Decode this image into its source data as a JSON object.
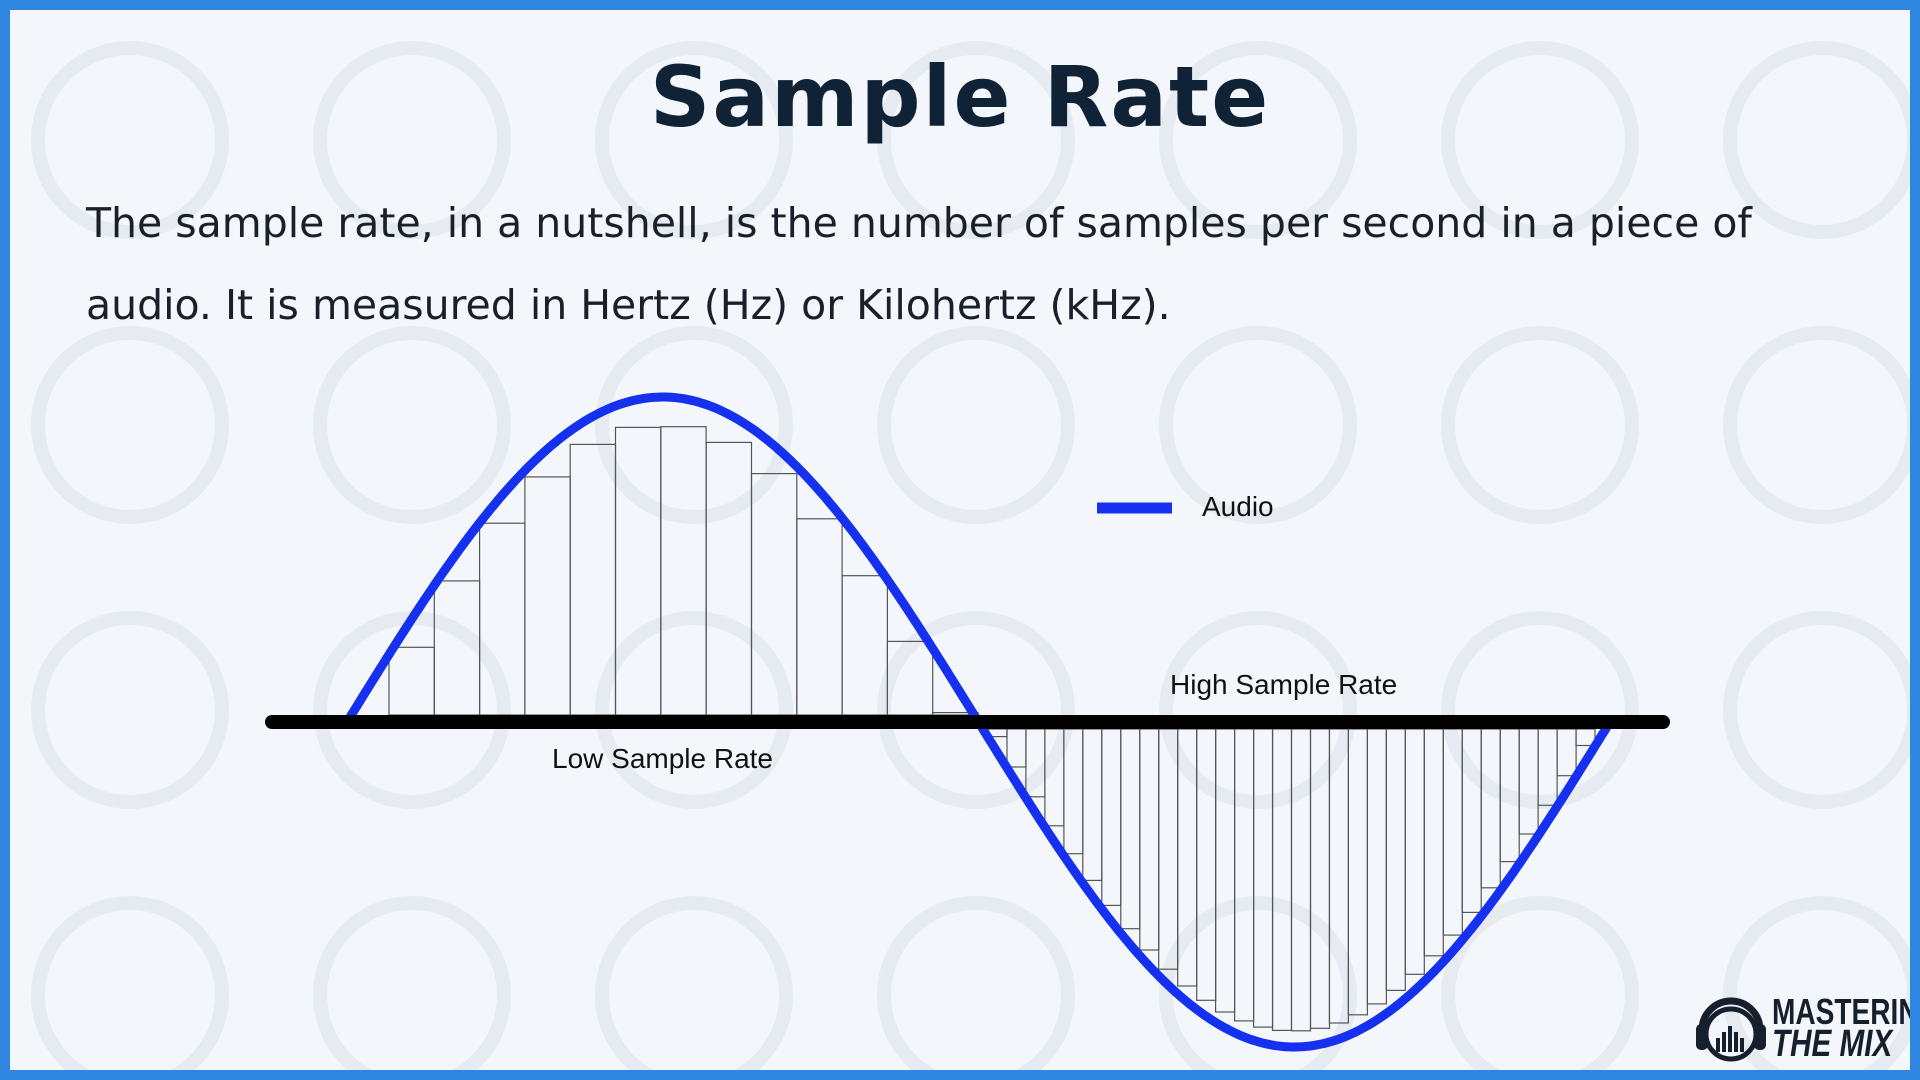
{
  "title": "Sample Rate",
  "description": "The sample rate, in a nutshell, is the number of samples per second in a piece of audio. It is measured in Hertz (Hz) or Kilohertz (kHz).",
  "diagram": {
    "legend_label": "Audio",
    "low_label": "Low Sample Rate",
    "high_label": "High Sample Rate",
    "wave_color": "#1530ee",
    "axis_color": "#000000",
    "low_samples": 13,
    "high_samples": 32
  },
  "logo": {
    "line1": "MASTERING",
    "line2": "THE MIX"
  },
  "colors": {
    "border": "#2f86e0",
    "background": "#f3f7fc",
    "title": "#0f2236"
  }
}
